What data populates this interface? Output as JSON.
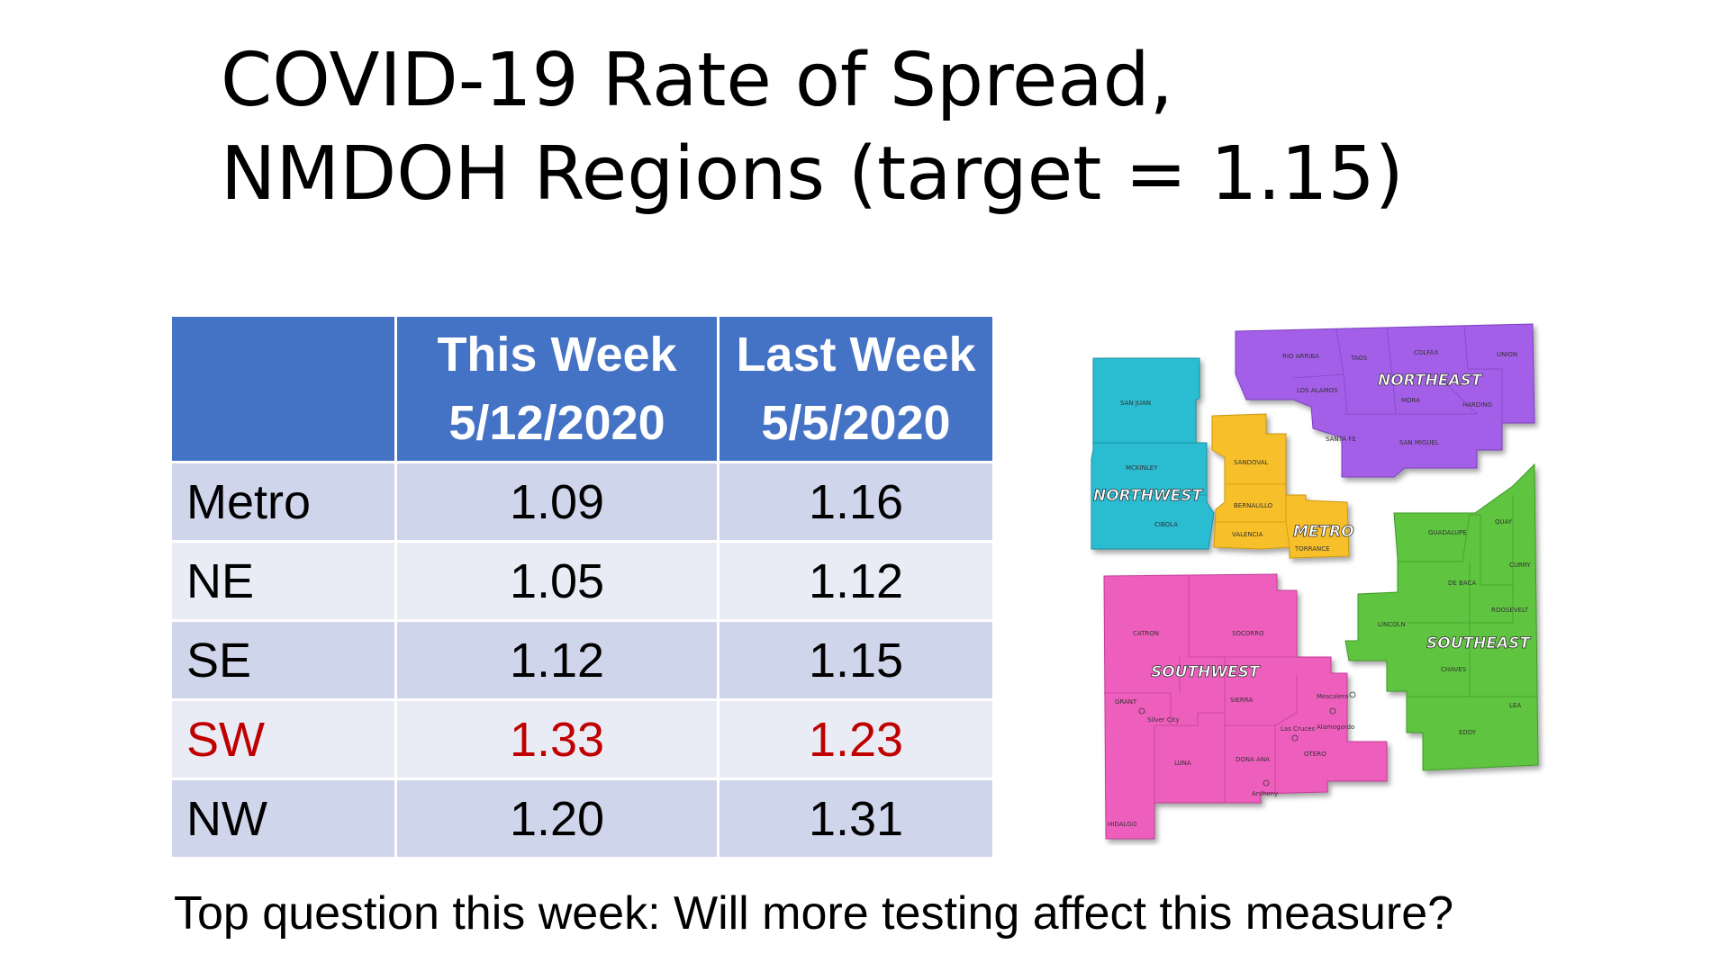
{
  "title": {
    "line1": "COVID-19 Rate of Spread,",
    "line2": "NMDOH Regions (target = 1.15)"
  },
  "table": {
    "headers": [
      {
        "line1": "",
        "line2": ""
      },
      {
        "line1": "This Week",
        "line2": "5/12/2020"
      },
      {
        "line1": "Last Week",
        "line2": "5/5/2020"
      }
    ],
    "rows": [
      {
        "region": "Metro",
        "this_week": "1.09",
        "last_week": "1.16",
        "highlight": false
      },
      {
        "region": "NE",
        "this_week": "1.05",
        "last_week": "1.12",
        "highlight": false
      },
      {
        "region": "SE",
        "this_week": "1.12",
        "last_week": "1.15",
        "highlight": false
      },
      {
        "region": "SW",
        "this_week": "1.33",
        "last_week": "1.23",
        "highlight": true
      },
      {
        "region": "NW",
        "this_week": "1.20",
        "last_week": "1.31",
        "highlight": false
      }
    ],
    "highlight_color": "#c00000",
    "header_color": "#4472c4"
  },
  "map": {
    "regions": {
      "northwest": {
        "label": "NORTHWEST",
        "color": "#2bbcd1"
      },
      "northeast": {
        "label": "NORTHEAST",
        "color": "#a45ee8"
      },
      "metro": {
        "label": "METRO",
        "color": "#f7c02a"
      },
      "southwest": {
        "label": "SOUTHWEST",
        "color": "#ee5fbd"
      },
      "southeast": {
        "label": "SOUTHEAST",
        "color": "#5ec43f"
      }
    },
    "counties": {
      "san_juan": "SAN JUAN",
      "mckinley": "MCKINLEY",
      "cibola": "CIBOLA",
      "rio_arriba": "RIO ARRIBA",
      "taos": "TAOS",
      "colfax": "COLFAX",
      "union": "UNION",
      "los_alamos": "LOS ALAMOS",
      "mora": "MORA",
      "harding": "HARDING",
      "santa_fe": "SANTA FE",
      "san_miguel": "SAN MIGUEL",
      "sandoval": "SANDOVAL",
      "bernalillo": "BERNALILLO",
      "valencia": "VALENCIA",
      "torrance": "TORRANCE",
      "guadalupe": "GUADALUPE",
      "quay": "QUAY",
      "curry": "CURRY",
      "de_baca": "DE BACA",
      "roosevelt": "ROOSEVELT",
      "lincoln": "LINCOLN",
      "chaves": "CHAVES",
      "lea": "LEA",
      "eddy": "EDDY",
      "catron": "CATRON",
      "socorro": "SOCORRO",
      "grant": "GRANT",
      "sierra": "SIERRA",
      "luna": "LUNA",
      "dona_ana": "DONA ANA",
      "otero": "OTERO",
      "hidalgo": "HIDALGO"
    },
    "cities": {
      "silver_city": "Silver City",
      "las_cruces": "Las Cruces",
      "alamogordo": "Alamogordo",
      "anthony": "Anthony",
      "mescalero": "Mescalero"
    }
  },
  "footer": {
    "question": "Top question this week: Will more testing affect this measure?"
  }
}
